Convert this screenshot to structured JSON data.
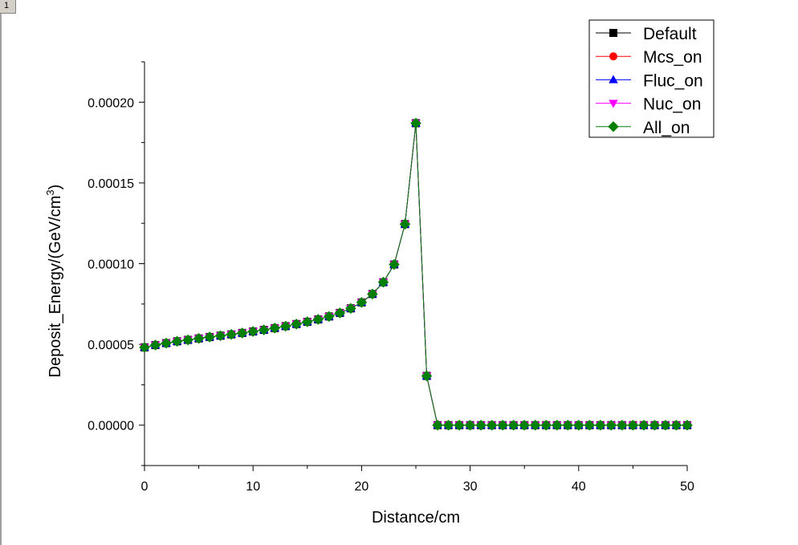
{
  "page": {
    "tab_label": "1"
  },
  "chart_data": {
    "type": "line",
    "title": "",
    "xlabel": "Distance/cm",
    "ylabel": "Deposit_Energy/(GeV/cm",
    "ylabel_sup": "3",
    "ylabel_suffix": ")",
    "xlim": [
      0,
      50
    ],
    "ylim": [
      -2.5e-05,
      0.000225
    ],
    "x_ticks": [
      0,
      10,
      20,
      30,
      40,
      50
    ],
    "x_tick_labels": [
      "0",
      "10",
      "20",
      "30",
      "40",
      "50"
    ],
    "y_ticks": [
      0,
      5e-05,
      0.0001,
      0.00015,
      0.0002
    ],
    "y_tick_labels": [
      "0.00000",
      "0.00005",
      "0.00010",
      "0.00015",
      "0.00020"
    ],
    "grid": false,
    "legend_position": "top-right",
    "x": [
      0,
      1,
      2,
      3,
      4,
      5,
      6,
      7,
      8,
      9,
      10,
      11,
      12,
      13,
      14,
      15,
      16,
      17,
      18,
      19,
      20,
      21,
      22,
      23,
      24,
      25,
      26,
      27,
      28,
      29,
      30,
      31,
      32,
      33,
      34,
      35,
      36,
      37,
      38,
      39,
      40,
      41,
      42,
      43,
      44,
      45,
      46,
      47,
      48,
      49,
      50
    ],
    "series": [
      {
        "name": "Default",
        "color": "#000000",
        "marker": "square",
        "values": [
          4.82e-05,
          4.96e-05,
          5.08e-05,
          5.19e-05,
          5.28e-05,
          5.37e-05,
          5.46e-05,
          5.54e-05,
          5.62e-05,
          5.71e-05,
          5.8e-05,
          5.9e-05,
          6.01e-05,
          6.13e-05,
          6.26e-05,
          6.4e-05,
          6.55e-05,
          6.73e-05,
          6.95e-05,
          7.23e-05,
          7.6e-05,
          8.12e-05,
          8.85e-05,
          9.95e-05,
          0.0001245,
          0.000187,
          3.05e-05,
          0,
          0,
          0,
          0,
          0,
          0,
          0,
          0,
          0,
          0,
          0,
          0,
          0,
          0,
          0,
          0,
          0,
          0,
          0,
          0,
          0,
          0,
          0,
          0
        ]
      },
      {
        "name": "Mcs_on",
        "color": "#ff0000",
        "marker": "circle",
        "values": [
          4.82e-05,
          4.96e-05,
          5.08e-05,
          5.19e-05,
          5.28e-05,
          5.37e-05,
          5.46e-05,
          5.54e-05,
          5.62e-05,
          5.71e-05,
          5.8e-05,
          5.9e-05,
          6.01e-05,
          6.13e-05,
          6.26e-05,
          6.4e-05,
          6.55e-05,
          6.73e-05,
          6.95e-05,
          7.23e-05,
          7.6e-05,
          8.12e-05,
          8.85e-05,
          9.95e-05,
          0.0001245,
          0.000187,
          3.05e-05,
          0,
          0,
          0,
          0,
          0,
          0,
          0,
          0,
          0,
          0,
          0,
          0,
          0,
          0,
          0,
          0,
          0,
          0,
          0,
          0,
          0,
          0,
          0,
          0
        ]
      },
      {
        "name": "Fluc_on",
        "color": "#0000ff",
        "marker": "triangle-up",
        "values": [
          4.82e-05,
          4.96e-05,
          5.08e-05,
          5.19e-05,
          5.28e-05,
          5.37e-05,
          5.46e-05,
          5.54e-05,
          5.62e-05,
          5.71e-05,
          5.8e-05,
          5.9e-05,
          6.01e-05,
          6.13e-05,
          6.26e-05,
          6.4e-05,
          6.55e-05,
          6.73e-05,
          6.95e-05,
          7.23e-05,
          7.6e-05,
          8.12e-05,
          8.85e-05,
          9.95e-05,
          0.0001245,
          0.000187,
          3.05e-05,
          0,
          0,
          0,
          0,
          0,
          0,
          0,
          0,
          0,
          0,
          0,
          0,
          0,
          0,
          0,
          0,
          0,
          0,
          0,
          0,
          0,
          0,
          0,
          0
        ]
      },
      {
        "name": "Nuc_on",
        "color": "#ff00ff",
        "marker": "triangle-down",
        "values": [
          4.82e-05,
          4.96e-05,
          5.08e-05,
          5.19e-05,
          5.28e-05,
          5.37e-05,
          5.46e-05,
          5.54e-05,
          5.62e-05,
          5.71e-05,
          5.8e-05,
          5.9e-05,
          6.01e-05,
          6.13e-05,
          6.26e-05,
          6.4e-05,
          6.55e-05,
          6.73e-05,
          6.95e-05,
          7.23e-05,
          7.6e-05,
          8.12e-05,
          8.85e-05,
          9.95e-05,
          0.0001245,
          0.000187,
          3.05e-05,
          0,
          0,
          0,
          0,
          0,
          0,
          0,
          0,
          0,
          0,
          0,
          0,
          0,
          0,
          0,
          0,
          0,
          0,
          0,
          0,
          0,
          0,
          0,
          0
        ]
      },
      {
        "name": "All_on",
        "color": "#008000",
        "marker": "diamond",
        "values": [
          4.82e-05,
          4.96e-05,
          5.08e-05,
          5.19e-05,
          5.28e-05,
          5.37e-05,
          5.46e-05,
          5.54e-05,
          5.62e-05,
          5.71e-05,
          5.8e-05,
          5.9e-05,
          6.01e-05,
          6.13e-05,
          6.26e-05,
          6.4e-05,
          6.55e-05,
          6.73e-05,
          6.95e-05,
          7.23e-05,
          7.6e-05,
          8.12e-05,
          8.85e-05,
          9.95e-05,
          0.0001245,
          0.000187,
          3.05e-05,
          0,
          0,
          0,
          0,
          0,
          0,
          0,
          0,
          0,
          0,
          0,
          0,
          0,
          0,
          0,
          0,
          0,
          0,
          0,
          0,
          0,
          0,
          0,
          0
        ]
      }
    ]
  }
}
